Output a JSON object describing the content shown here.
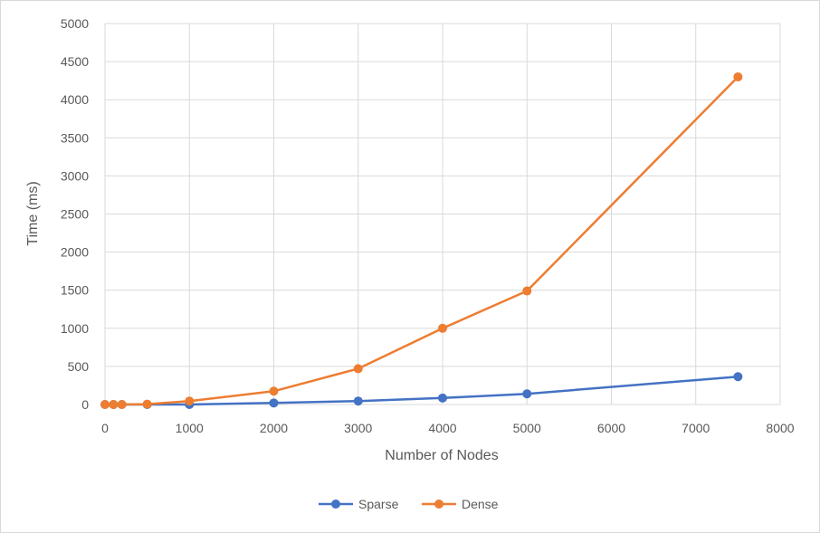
{
  "chart_data": {
    "type": "line",
    "title": "",
    "xlabel": "Number of Nodes",
    "ylabel": "Time (ms)",
    "xlim": [
      0,
      8000
    ],
    "ylim": [
      0,
      5000
    ],
    "x_ticks": [
      0,
      1000,
      2000,
      3000,
      4000,
      5000,
      6000,
      7000,
      8000
    ],
    "y_ticks": [
      0,
      500,
      1000,
      1500,
      2000,
      2500,
      3000,
      3500,
      4000,
      4500,
      5000
    ],
    "grid": true,
    "legend_position": "bottom",
    "series": [
      {
        "name": "Sparse",
        "color": "#4472c4",
        "x": [
          0,
          100,
          200,
          500,
          1000,
          2000,
          3000,
          4000,
          5000,
          7500
        ],
        "y": [
          0,
          0,
          0,
          0,
          0,
          20,
          45,
          85,
          140,
          365
        ]
      },
      {
        "name": "Dense",
        "color": "#ed7d31",
        "x": [
          0,
          100,
          200,
          500,
          1000,
          2000,
          3000,
          4000,
          5000,
          7500
        ],
        "y": [
          0,
          0,
          0,
          5,
          45,
          175,
          470,
          1000,
          1490,
          4300
        ]
      }
    ]
  }
}
